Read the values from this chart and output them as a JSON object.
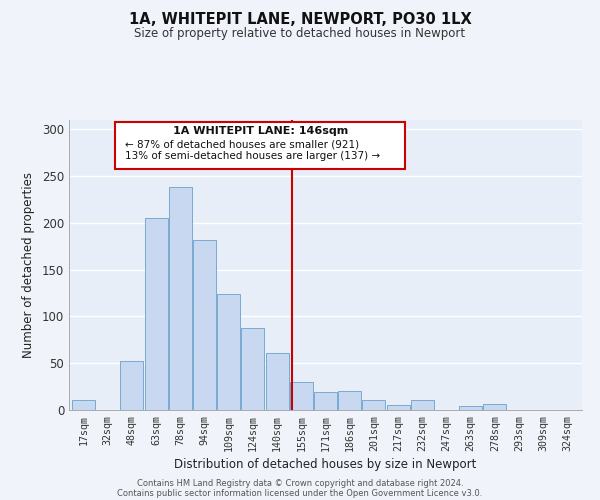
{
  "title": "1A, WHITEPIT LANE, NEWPORT, PO30 1LX",
  "subtitle": "Size of property relative to detached houses in Newport",
  "xlabel": "Distribution of detached houses by size in Newport",
  "ylabel": "Number of detached properties",
  "bar_color": "#c8d8f0",
  "bar_edge_color": "#7aaad0",
  "categories": [
    "17sqm",
    "32sqm",
    "48sqm",
    "63sqm",
    "78sqm",
    "94sqm",
    "109sqm",
    "124sqm",
    "140sqm",
    "155sqm",
    "171sqm",
    "186sqm",
    "201sqm",
    "217sqm",
    "232sqm",
    "247sqm",
    "263sqm",
    "278sqm",
    "293sqm",
    "309sqm",
    "324sqm"
  ],
  "values": [
    11,
    0,
    52,
    205,
    238,
    182,
    124,
    88,
    61,
    30,
    19,
    20,
    11,
    5,
    11,
    0,
    4,
    6,
    0,
    0,
    0
  ],
  "property_line_x": 8.6,
  "property_line_color": "#cc0000",
  "annotation_line1": "1A WHITEPIT LANE: 146sqm",
  "annotation_line2": "← 87% of detached houses are smaller (921)",
  "annotation_line3": "13% of semi-detached houses are larger (137) →",
  "ylim": [
    0,
    310
  ],
  "yticks": [
    0,
    50,
    100,
    150,
    200,
    250,
    300
  ],
  "footer1": "Contains HM Land Registry data © Crown copyright and database right 2024.",
  "footer2": "Contains public sector information licensed under the Open Government Licence v3.0.",
  "background_color": "#f0f4fa",
  "grid_color": "#ffffff",
  "plot_bg_color": "#e8eef8"
}
